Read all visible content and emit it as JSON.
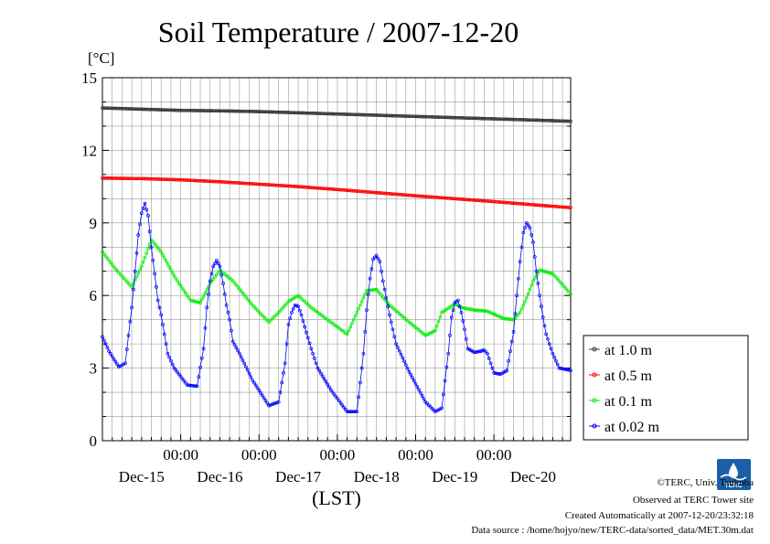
{
  "chart_data": {
    "type": "line",
    "title": "Soil Temperature / 2007-12-20",
    "ylabel": "[°C]",
    "xlabel": "(LST)",
    "ylim": [
      0,
      15
    ],
    "yticks": [
      "0",
      "3",
      "6",
      "9",
      "12",
      "15"
    ],
    "xlim": [
      0,
      143.5
    ],
    "x_tick_time_label": "00:00",
    "x_tick_hours": [
      24,
      48,
      72,
      96,
      120
    ],
    "x_day_labels": [
      "Dec-15",
      "Dec-16",
      "Dec-17",
      "Dec-18",
      "Dec-19",
      "Dec-20"
    ],
    "x_day_label_hours": [
      12,
      36,
      60,
      84,
      108,
      132
    ],
    "x_unit": "hours since 2007-12-14 00:00 LST",
    "grid": true,
    "legend_position": "right",
    "series": [
      {
        "name": "at 1.0 m",
        "color": "#333333",
        "x": [
          0,
          12,
          24,
          36,
          48,
          60,
          72,
          84,
          96,
          108,
          120,
          132,
          143.5
        ],
        "values": [
          13.75,
          13.7,
          13.65,
          13.63,
          13.6,
          13.55,
          13.5,
          13.45,
          13.4,
          13.35,
          13.3,
          13.25,
          13.2
        ]
      },
      {
        "name": "at 0.5 m",
        "color": "#ff0000",
        "x": [
          0,
          12,
          24,
          36,
          48,
          60,
          72,
          84,
          96,
          108,
          120,
          132,
          143.5
        ],
        "values": [
          10.85,
          10.83,
          10.78,
          10.7,
          10.6,
          10.5,
          10.38,
          10.25,
          10.12,
          10.0,
          9.88,
          9.75,
          9.63
        ]
      },
      {
        "name": "at 0.1 m",
        "color": "#00ee00",
        "x": [
          0,
          4,
          9,
          12,
          15,
          18,
          22,
          27,
          30,
          33,
          36,
          40,
          46,
          51,
          54,
          57,
          60,
          64,
          70,
          75,
          78,
          81,
          84,
          88,
          94,
          99,
          102,
          104,
          108,
          110,
          114,
          118,
          123,
          126,
          128,
          130,
          132,
          134,
          138,
          142,
          143.5
        ],
        "values": [
          7.8,
          7.1,
          6.35,
          7.2,
          8.3,
          7.8,
          6.8,
          5.8,
          5.7,
          6.5,
          7.05,
          6.6,
          5.6,
          4.9,
          5.3,
          5.75,
          6.0,
          5.5,
          4.9,
          4.4,
          5.3,
          6.2,
          6.25,
          5.6,
          4.9,
          4.35,
          4.55,
          5.3,
          5.65,
          5.5,
          5.4,
          5.35,
          5.05,
          5.0,
          5.3,
          5.9,
          6.6,
          7.05,
          6.9,
          6.3,
          6.05
        ]
      },
      {
        "name": "at 0.02 m",
        "color": "#0000ff",
        "x": [
          0,
          2,
          5,
          7,
          9,
          10,
          11,
          12,
          13,
          14,
          15,
          16,
          17,
          18,
          20,
          22,
          24,
          26,
          29,
          31,
          32,
          33,
          34,
          35,
          36,
          37,
          38,
          39,
          40,
          42,
          46,
          51,
          54,
          56,
          57,
          58,
          59,
          60,
          61,
          62,
          64,
          66,
          70,
          75,
          78,
          80,
          81,
          82,
          83,
          84,
          85,
          86,
          87,
          88,
          90,
          94,
          99,
          102,
          104,
          106,
          107,
          108,
          109,
          110,
          111,
          112,
          114,
          116,
          117,
          118,
          120,
          122,
          124,
          126,
          127,
          128,
          129,
          130,
          131,
          132,
          133,
          134,
          135,
          136,
          138,
          140,
          142,
          143.5
        ],
        "values": [
          4.3,
          3.7,
          3.05,
          3.2,
          5.5,
          7.0,
          8.5,
          9.4,
          9.8,
          9.3,
          8.0,
          6.9,
          5.8,
          5.2,
          3.6,
          3.0,
          2.65,
          2.3,
          2.25,
          3.8,
          5.5,
          6.6,
          7.2,
          7.45,
          7.2,
          6.5,
          5.6,
          5.0,
          4.1,
          3.6,
          2.5,
          1.45,
          1.6,
          3.2,
          4.8,
          5.3,
          5.6,
          5.55,
          5.2,
          4.7,
          3.8,
          3.0,
          2.1,
          1.2,
          1.2,
          3.6,
          5.4,
          6.7,
          7.5,
          7.65,
          7.4,
          6.6,
          5.9,
          5.2,
          4.0,
          2.85,
          1.6,
          1.2,
          1.35,
          3.6,
          5.1,
          5.7,
          5.8,
          5.3,
          4.6,
          3.8,
          3.65,
          3.7,
          3.75,
          3.6,
          2.8,
          2.75,
          2.9,
          4.5,
          6.0,
          7.4,
          8.6,
          9.0,
          8.8,
          8.2,
          7.0,
          6.0,
          5.1,
          4.4,
          3.6,
          3.0,
          2.95,
          2.9
        ]
      }
    ]
  },
  "footer": {
    "copyright": "©TERC, Univ. Tsukuba",
    "observed": "Observed at TERC Tower site",
    "created": "Created Automatically at 2007-12-20/23:32:18",
    "source": "Data source : /home/hojyo/new/TERC-data/sorted_data/MET.30m.dat"
  },
  "logo": {
    "text": "TERC",
    "color": "#1a5fa8"
  }
}
